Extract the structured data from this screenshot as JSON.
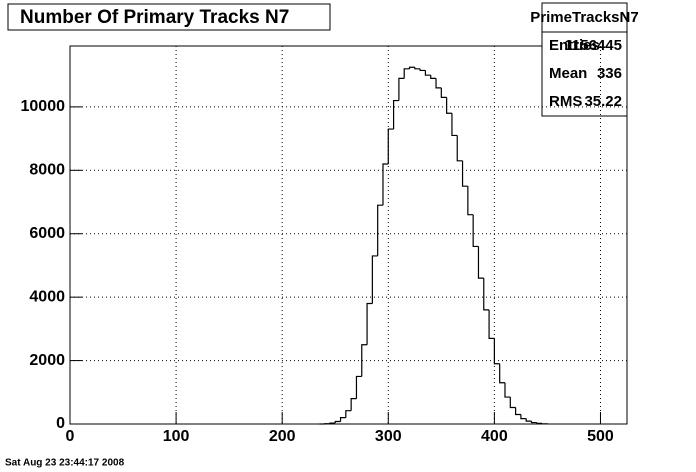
{
  "chart_data": {
    "type": "histogram",
    "title": "Number Of Primary Tracks N7",
    "bins": [
      235,
      240,
      245,
      250,
      255,
      260,
      265,
      270,
      275,
      280,
      285,
      290,
      295,
      300,
      305,
      310,
      315,
      320,
      325,
      330,
      335,
      340,
      345,
      350,
      355,
      360,
      365,
      370,
      375,
      380,
      385,
      390,
      395,
      400,
      405,
      410,
      415,
      420,
      425,
      430,
      435,
      440,
      445,
      450
    ],
    "values": [
      0,
      10,
      30,
      80,
      200,
      420,
      800,
      1500,
      2500,
      3800,
      5300,
      6900,
      8200,
      9300,
      10200,
      10900,
      11200,
      11250,
      11200,
      11150,
      11000,
      10900,
      10600,
      10300,
      9800,
      9100,
      8300,
      7500,
      6600,
      5600,
      4600,
      3600,
      2700,
      1900,
      1300,
      850,
      520,
      300,
      170,
      90,
      45,
      20,
      5
    ],
    "color": "#000000",
    "xlim": [
      0,
      525
    ],
    "xticks": [
      0,
      100,
      200,
      300,
      400,
      500
    ],
    "ylim": [
      0,
      11920
    ],
    "yticks": [
      0,
      2000,
      4000,
      6000,
      8000,
      10000
    ],
    "grid": true,
    "stats": {
      "title": "PrimeTracksN7",
      "rows": [
        {
          "label": "Entries",
          "value": 1156445
        },
        {
          "label": "Mean",
          "value": 336
        },
        {
          "label": "RMS",
          "value": 35.22
        }
      ]
    },
    "footer": "Sat Aug 23 23:44:17 2008"
  }
}
